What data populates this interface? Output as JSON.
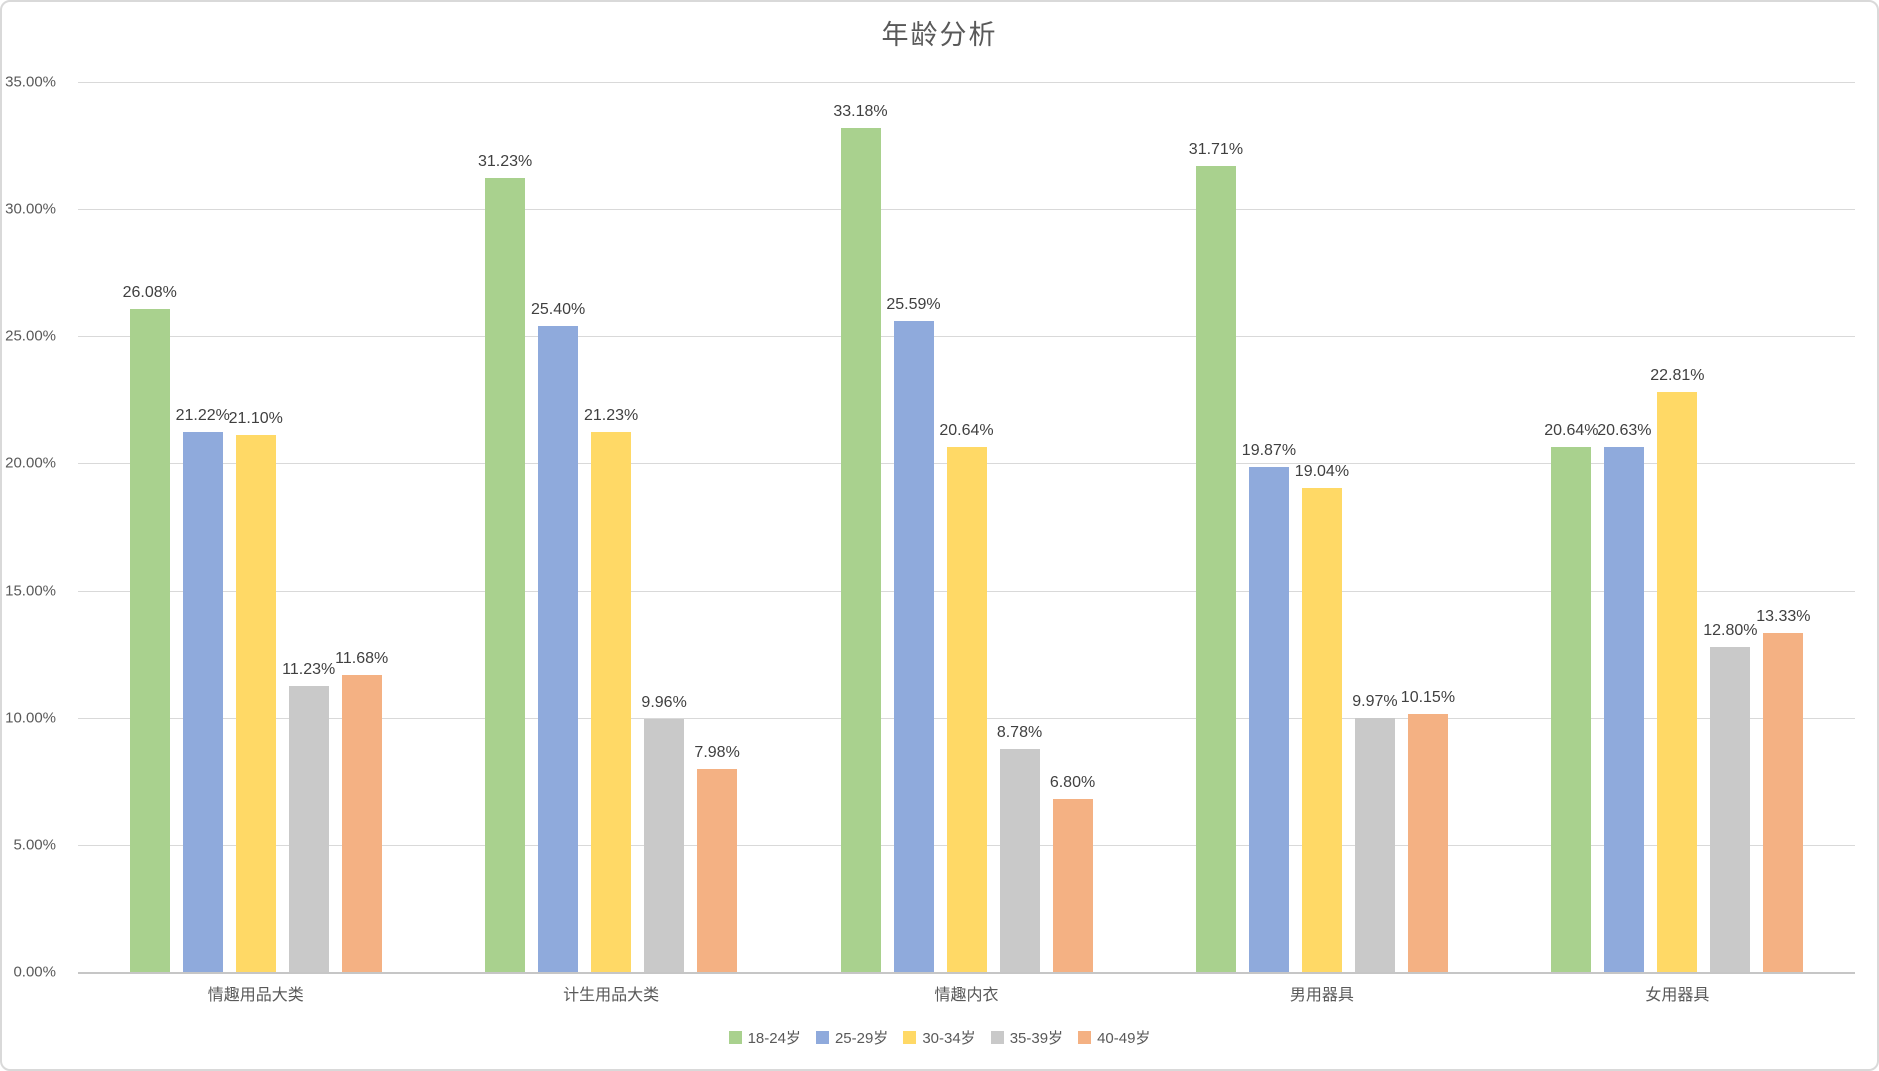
{
  "chart_data": {
    "type": "bar",
    "title": "年龄分析",
    "categories": [
      "情趣用品大类",
      "计生用品大类",
      "情趣内衣",
      "男用器具",
      "女用器具"
    ],
    "series": [
      {
        "name": "18-24岁",
        "color": "#A9D18E",
        "values": [
          26.08,
          31.23,
          33.18,
          31.71,
          20.64
        ]
      },
      {
        "name": "25-29岁",
        "color": "#8FAADC",
        "values": [
          21.22,
          25.4,
          25.59,
          19.87,
          20.63
        ]
      },
      {
        "name": "30-34岁",
        "color": "#FFD966",
        "values": [
          21.1,
          21.23,
          20.64,
          19.04,
          22.81
        ]
      },
      {
        "name": "35-39岁",
        "color": "#C9C9C9",
        "values": [
          11.23,
          9.96,
          8.78,
          9.97,
          12.8
        ]
      },
      {
        "name": "40-49岁",
        "color": "#F4B183",
        "values": [
          11.68,
          7.98,
          6.8,
          10.15,
          13.33
        ]
      }
    ],
    "data_labels": [
      [
        "26.08%",
        "31.23%",
        "33.18%",
        "31.71%",
        "20.64%"
      ],
      [
        "21.22%",
        "25.40%",
        "25.59%",
        "19.87%",
        "20.63%"
      ],
      [
        "21.10%",
        "21.23%",
        "20.64%",
        "19.04%",
        "22.81%"
      ],
      [
        "11.23%",
        "9.96%",
        "8.78%",
        "9.97%",
        "12.80%"
      ],
      [
        "11.68%",
        "7.98%",
        "6.80%",
        "10.15%",
        "13.33%"
      ]
    ],
    "y_axis": {
      "min": 0,
      "max": 35,
      "step": 5
    },
    "y_tick_labels": [
      "0.00%",
      "5.00%",
      "10.00%",
      "15.00%",
      "20.00%",
      "25.00%",
      "30.00%",
      "35.00%"
    ],
    "legend_position": "bottom",
    "grid": true,
    "colors": {
      "title_text": "#595959",
      "axis_text": "#595959",
      "data_label_text": "#404040",
      "gridline": "#D9D9D9",
      "axis_line": "#C6C6C6",
      "frame_border": "#D9D9D9",
      "background": "#FFFFFF"
    }
  }
}
